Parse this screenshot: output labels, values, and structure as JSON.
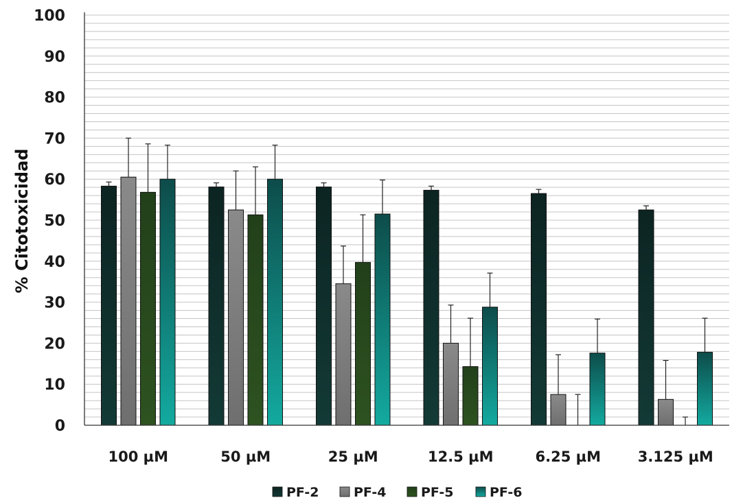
{
  "chart_data": {
    "type": "bar",
    "ylabel": "% Citotoxicidad",
    "xlabel": "",
    "ylim": [
      0,
      100
    ],
    "yticks": [
      0,
      10,
      20,
      30,
      40,
      50,
      60,
      70,
      80,
      90,
      100
    ],
    "grid": true,
    "legend_position": "bottom",
    "categories": [
      "100 µM",
      "50 µM",
      "25 µM",
      "12.5 µM",
      "6.25 µM",
      "3.125 µM"
    ],
    "series": [
      {
        "name": "PF-2",
        "color": "#0f2d2a",
        "values": [
          58.3,
          58.1,
          58.1,
          57.3,
          56.5,
          52.5
        ],
        "errors": [
          1.0,
          1.0,
          1.0,
          1.0,
          1.0,
          1.0
        ]
      },
      {
        "name": "PF-4",
        "color": "#808080",
        "values": [
          60.5,
          52.5,
          34.5,
          20.0,
          7.5,
          6.3
        ],
        "errors": [
          9.5,
          9.5,
          9.2,
          9.3,
          9.7,
          9.5
        ]
      },
      {
        "name": "PF-5",
        "color": "#2a4a1a",
        "values": [
          56.8,
          51.3,
          39.7,
          14.3,
          0,
          0
        ],
        "errors": [
          11.8,
          11.7,
          11.6,
          11.8,
          7.5,
          2.0
        ]
      },
      {
        "name": "PF-6",
        "color": "#138b84",
        "values": [
          60.0,
          60.0,
          51.5,
          28.8,
          17.6,
          17.8
        ],
        "errors": [
          8.3,
          8.3,
          8.3,
          8.3,
          8.3,
          8.3
        ]
      }
    ]
  }
}
